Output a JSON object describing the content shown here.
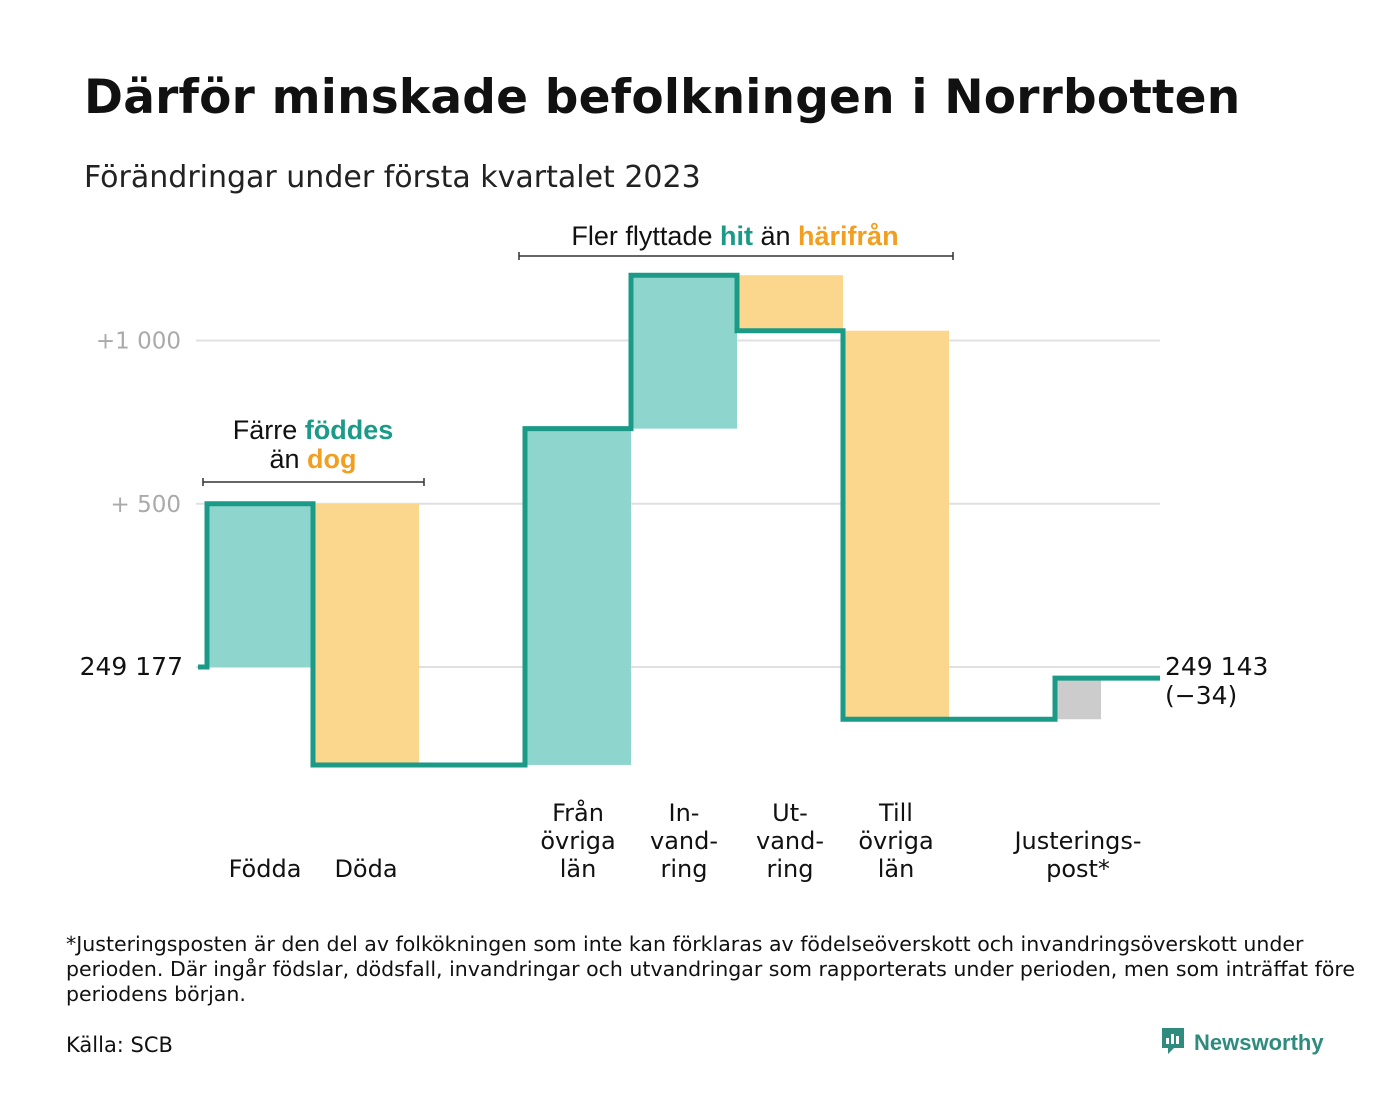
{
  "title": "Därför minskade befolkningen i Norrbotten",
  "subtitle": "Förändringar under första kvartalet 2023",
  "colors": {
    "inflow": "#8ed6cd",
    "outflow": "#fbd68d",
    "adjustment": "#cccccc",
    "line": "#1a9a87",
    "grid": "#e0e0e0",
    "hl_teal": "#1a9a87",
    "hl_orange": "#f29e1f",
    "brand": "#2e8b7e"
  },
  "chart_data": {
    "type": "waterfall",
    "start_value": 249177,
    "start_label": "249 177",
    "end_value": 249143,
    "end_label": "249 143",
    "end_change_label": "(−34)",
    "y_ticks": [
      {
        "value": 1000,
        "label": "+1 000"
      },
      {
        "value": 500,
        "label": "+ 500"
      }
    ],
    "steps": [
      {
        "label": [
          "Födda"
        ],
        "delta": 500,
        "kind": "inflow"
      },
      {
        "label": [
          "Döda"
        ],
        "delta": -800,
        "kind": "outflow"
      },
      {
        "label": [
          "Från",
          "övriga",
          "län"
        ],
        "delta": 1030,
        "kind": "inflow"
      },
      {
        "label": [
          "In-",
          "vand-",
          "ring"
        ],
        "delta": 470,
        "kind": "inflow"
      },
      {
        "label": [
          "Ut-",
          "vand-",
          "ring"
        ],
        "delta": -170,
        "kind": "outflow"
      },
      {
        "label": [
          "Till",
          "övriga",
          "län"
        ],
        "delta": -1190,
        "kind": "outflow"
      },
      {
        "label": [
          "Justerings-",
          "post*"
        ],
        "delta": 126,
        "kind": "adjustment"
      }
    ],
    "annotations": [
      {
        "parts": [
          {
            "text": "Färre ",
            "style": "plain"
          },
          {
            "text": "föddes",
            "style": "teal"
          }
        ]
      },
      {
        "parts": [
          {
            "text": "än ",
            "style": "plain"
          },
          {
            "text": "dog",
            "style": "orange"
          }
        ]
      },
      {
        "parts": [
          {
            "text": "Fler flyttade ",
            "style": "plain"
          },
          {
            "text": "hit",
            "style": "teal"
          },
          {
            "text": " än ",
            "style": "plain"
          },
          {
            "text": "härifrån",
            "style": "orange"
          }
        ]
      }
    ]
  },
  "footnote": "*Justeringsposten är den del av folkökningen som inte kan förklaras av födelseöverskott och invandringsöverskott under perioden. Där ingår födslar, dödsfall, invandringar och utvandringar som rapporterats under perioden, men som inträffat före periodens början.",
  "source": "Källa: SCB",
  "brand": {
    "name": "Newsworthy",
    "icon": "newsworthy-logo-icon"
  }
}
